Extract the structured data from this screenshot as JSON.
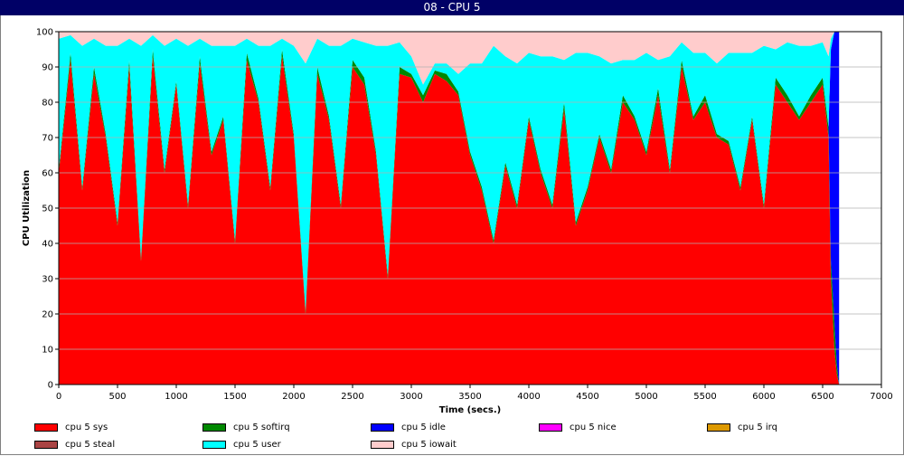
{
  "window": {
    "title": "08 - CPU 5"
  },
  "chart_data": {
    "type": "area",
    "stacked": true,
    "title": "08 - CPU 5",
    "xlabel": "Time (secs.)",
    "ylabel": "CPU Utilization",
    "xlim": [
      0,
      7000
    ],
    "ylim": [
      0,
      100
    ],
    "xticks": [
      0,
      500,
      1000,
      1500,
      2000,
      2500,
      3000,
      3500,
      4000,
      4500,
      5000,
      5500,
      6000,
      6500,
      7000
    ],
    "yticks": [
      0,
      10,
      20,
      30,
      40,
      50,
      60,
      70,
      80,
      90,
      100
    ],
    "grid": "horizontal",
    "legend_position": "bottom",
    "x": [
      0,
      100,
      200,
      300,
      400,
      500,
      600,
      700,
      800,
      900,
      1000,
      1100,
      1200,
      1300,
      1400,
      1500,
      1600,
      1700,
      1800,
      1900,
      2000,
      2100,
      2200,
      2300,
      2400,
      2500,
      2600,
      2700,
      2800,
      2900,
      3000,
      3100,
      3200,
      3300,
      3400,
      3500,
      3600,
      3700,
      3800,
      3900,
      4000,
      4100,
      4200,
      4300,
      4400,
      4500,
      4600,
      4700,
      4800,
      4900,
      5000,
      5100,
      5200,
      5300,
      5400,
      5500,
      5600,
      5700,
      5800,
      5900,
      6000,
      6100,
      6200,
      6300,
      6400,
      6500,
      6550,
      6570,
      6600,
      6620,
      6640
    ],
    "series": [
      {
        "name": "cpu 5 sys",
        "color": "#ff0000",
        "values": [
          60,
          92,
          55,
          88,
          70,
          45,
          90,
          35,
          93,
          60,
          85,
          50,
          91,
          65,
          75,
          40,
          92,
          80,
          55,
          93,
          70,
          20,
          88,
          75,
          50,
          90,
          85,
          65,
          30,
          88,
          87,
          80,
          88,
          86,
          82,
          65,
          55,
          40,
          62,
          50,
          75,
          60,
          50,
          78,
          45,
          55,
          70,
          60,
          80,
          75,
          65,
          82,
          60,
          90,
          75,
          80,
          70,
          68,
          55,
          75,
          50,
          85,
          80,
          75,
          80,
          85,
          70,
          30,
          10,
          3,
          0
        ]
      },
      {
        "name": "cpu 5 softirq",
        "color": "#008800",
        "values": [
          1,
          2,
          1,
          2,
          1,
          1,
          2,
          1,
          2,
          1,
          1,
          1,
          2,
          1,
          1,
          1,
          2,
          1,
          1,
          2,
          1,
          1,
          2,
          1,
          1,
          2,
          2,
          1,
          1,
          2,
          1,
          2,
          1,
          2,
          1,
          1,
          1,
          1,
          1,
          1,
          1,
          1,
          1,
          2,
          1,
          1,
          1,
          1,
          2,
          1,
          1,
          2,
          1,
          2,
          1,
          2,
          1,
          1,
          1,
          1,
          1,
          2,
          2,
          1,
          2,
          2,
          3,
          5,
          8,
          3,
          0
        ]
      },
      {
        "name": "cpu 5 idle",
        "color": "#0000ff",
        "values": [
          0,
          0,
          0,
          0,
          0,
          0,
          0,
          0,
          0,
          0,
          0,
          0,
          0,
          0,
          0,
          0,
          0,
          0,
          0,
          0,
          0,
          0,
          0,
          0,
          0,
          0,
          0,
          0,
          0,
          0,
          0,
          0,
          0,
          0,
          0,
          0,
          0,
          0,
          0,
          0,
          0,
          0,
          0,
          0,
          0,
          0,
          0,
          0,
          0,
          0,
          0,
          0,
          0,
          0,
          0,
          0,
          0,
          0,
          0,
          0,
          0,
          0,
          0,
          0,
          0,
          0,
          0,
          60,
          82,
          94,
          100
        ]
      },
      {
        "name": "cpu 5 nice",
        "color": "#ff00ff",
        "values": [
          0,
          0,
          0,
          0,
          0,
          0,
          0,
          0,
          0,
          0,
          0,
          0,
          0,
          0,
          0,
          0,
          0,
          0,
          0,
          0,
          0,
          0,
          0,
          0,
          0,
          0,
          0,
          0,
          0,
          0,
          0,
          0,
          0,
          0,
          0,
          0,
          0,
          0,
          0,
          0,
          0,
          0,
          0,
          0,
          0,
          0,
          0,
          0,
          0,
          0,
          0,
          0,
          0,
          0,
          0,
          0,
          0,
          0,
          0,
          0,
          0,
          0,
          0,
          0,
          0,
          0,
          0,
          0,
          0,
          0,
          0
        ]
      },
      {
        "name": "cpu 5 irq",
        "color": "#dd9900",
        "values": [
          0,
          0,
          0,
          0,
          0,
          0,
          0,
          0,
          0,
          0,
          0,
          0,
          0,
          0,
          0,
          0,
          0,
          0,
          0,
          0,
          0,
          0,
          0,
          0,
          0,
          0,
          0,
          0,
          0,
          0,
          0,
          0,
          0,
          0,
          0,
          0,
          0,
          0,
          0,
          0,
          0,
          0,
          0,
          0,
          0,
          0,
          0,
          0,
          0,
          0,
          0,
          0,
          0,
          0,
          0,
          0,
          0,
          0,
          0,
          0,
          0,
          0,
          0,
          0,
          0,
          0,
          0,
          0,
          0,
          0,
          0
        ]
      },
      {
        "name": "cpu 5 steal",
        "color": "#aa4444",
        "values": [
          0,
          0,
          0,
          0,
          0,
          0,
          0,
          0,
          0,
          0,
          0,
          0,
          0,
          0,
          0,
          0,
          0,
          0,
          0,
          0,
          0,
          0,
          0,
          0,
          0,
          0,
          0,
          0,
          0,
          0,
          0,
          0,
          0,
          0,
          0,
          0,
          0,
          0,
          0,
          0,
          0,
          0,
          0,
          0,
          0,
          0,
          0,
          0,
          0,
          0,
          0,
          0,
          0,
          0,
          0,
          0,
          0,
          0,
          0,
          0,
          0,
          0,
          0,
          0,
          0,
          0,
          0,
          0,
          0,
          0,
          0
        ]
      },
      {
        "name": "cpu 5 user",
        "color": "#00ffff",
        "values": [
          37,
          5,
          40,
          8,
          25,
          50,
          6,
          60,
          4,
          35,
          12,
          45,
          5,
          30,
          20,
          55,
          4,
          15,
          40,
          3,
          25,
          70,
          8,
          20,
          45,
          6,
          10,
          30,
          65,
          7,
          5,
          3,
          2,
          3,
          5,
          25,
          35,
          55,
          30,
          40,
          18,
          32,
          42,
          12,
          48,
          38,
          22,
          30,
          10,
          16,
          28,
          8,
          32,
          5,
          18,
          12,
          20,
          25,
          38,
          18,
          45,
          8,
          15,
          20,
          14,
          10,
          20,
          3,
          0,
          0,
          0
        ]
      },
      {
        "name": "cpu 5 iowait",
        "color": "#ffcccc",
        "values": [
          2,
          1,
          4,
          2,
          4,
          4,
          2,
          4,
          1,
          4,
          2,
          4,
          2,
          4,
          4,
          4,
          2,
          4,
          4,
          2,
          4,
          9,
          2,
          4,
          4,
          2,
          3,
          4,
          4,
          3,
          7,
          15,
          9,
          9,
          12,
          9,
          9,
          4,
          7,
          9,
          6,
          7,
          7,
          8,
          6,
          6,
          7,
          9,
          8,
          8,
          6,
          8,
          7,
          3,
          6,
          6,
          9,
          6,
          6,
          6,
          4,
          5,
          3,
          4,
          4,
          3,
          7,
          2,
          0,
          0,
          0
        ]
      }
    ]
  }
}
